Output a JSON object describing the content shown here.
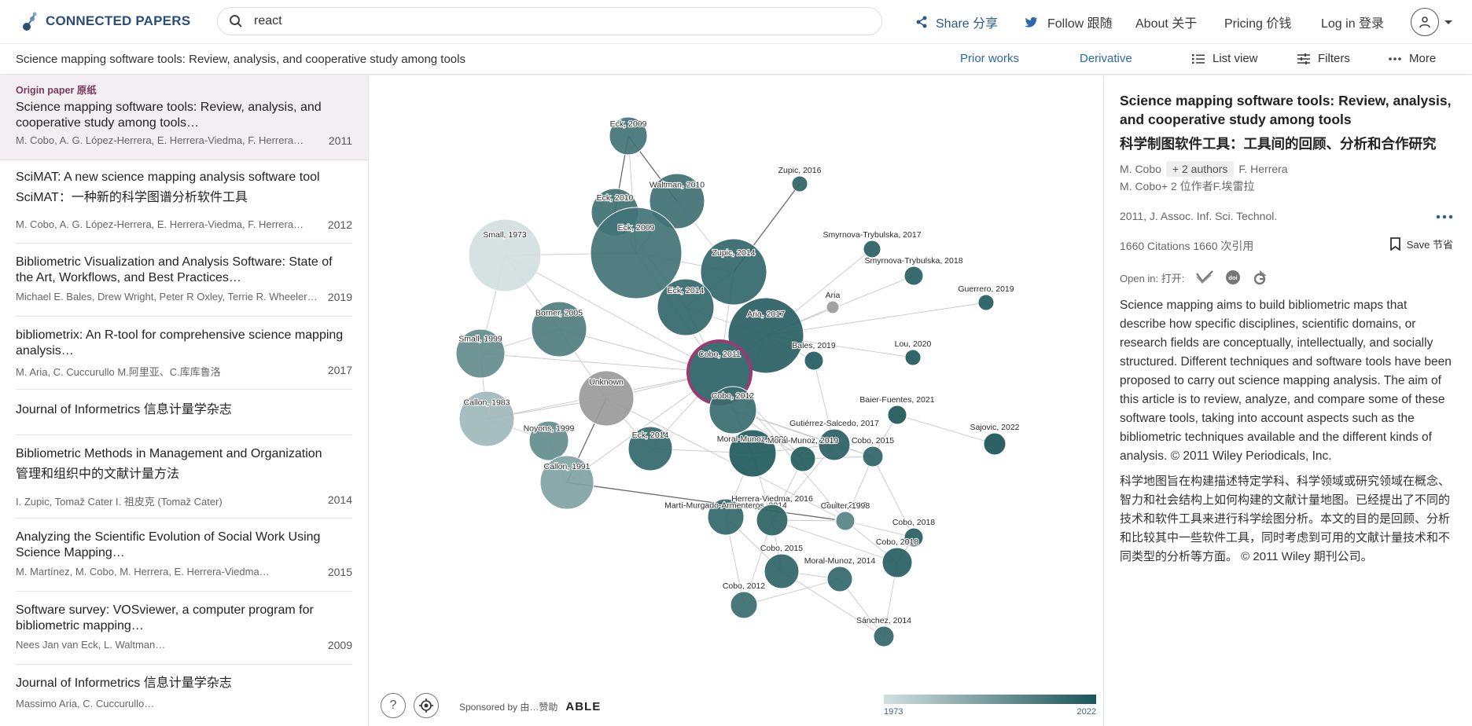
{
  "header": {
    "logo_text": "CONNECTED PAPERS",
    "search_value": "react",
    "share": "Share 分享",
    "follow": "Follow 跟随",
    "about": "About 关于",
    "pricing": "Pricing 价钱",
    "login": "Log in 登录"
  },
  "subbar": {
    "title": "Science mapping software tools: Review, analysis, and cooperative study among tools",
    "prior_works": "Prior works",
    "derivative": "Derivative",
    "list_view": "List view",
    "filters": "Filters",
    "more": "More"
  },
  "papers": [
    {
      "label": "Origin paper 原纸",
      "title": "Science mapping software tools: Review, analysis, and cooperative study among tools…",
      "authors": "M. Cobo, A. G. López-Herrera, E. Herrera-Viedma, F. Herrera…",
      "year": "2011"
    },
    {
      "title": "SciMAT: A new science mapping analysis software tool",
      "title_zh": "SciMAT：一种新的科学图谱分析软件工具",
      "authors": "M. Cobo, A. G. López-Herrera, E. Herrera-Viedma, F. Herrera…",
      "year": "2012"
    },
    {
      "title": "Bibliometric Visualization and Analysis Software: State of the Art, Workflows, and Best Practices…",
      "authors": "Michael E. Bales, Drew Wright, Peter R Oxley, Terrie R. Wheeler…",
      "year": "2019"
    },
    {
      "title": "bibliometrix: An R-tool for comprehensive science mapping analysis…",
      "authors": "M. Aria, C. Cuccurullo M.阿里亚、C.库库鲁洛",
      "year": "2017"
    },
    {
      "title": "Journal of Informetrics 信息计量学杂志"
    },
    {
      "title": "Bibliometric Methods in Management and Organization",
      "title_zh": "管理和组织中的文献计量方法",
      "authors": "I. Zupic, Tomaž Cater I. 祖皮克 (Tomaž Cater)",
      "year": "2014"
    },
    {
      "title": "Analyzing the Scientific Evolution of Social Work Using Science Mapping…",
      "authors": "M. Martínez, M. Cobo, M. Herrera, E. Herrera-Viedma…",
      "year": "2015"
    },
    {
      "title": "Software survey: VOSviewer, a computer program for bibliometric mapping…",
      "authors": "Nees Jan van Eck, L. Waltman…",
      "year": "2009"
    },
    {
      "title": "Journal of Informetrics 信息计量学杂志",
      "authors": "Massimo Aria, C. Cuccurullo…"
    }
  ],
  "graph": {
    "sponsored": "Sponsored by  由…赞助",
    "sponsor_name": "ABLE",
    "legend_min": "1973",
    "legend_max": "2022",
    "nodes": [
      {
        "label": "Eck, 2009",
        "year": 2009
      },
      {
        "label": "Zupic, 2016",
        "year": 2016
      },
      {
        "label": "Eck, 2010",
        "year": 2010
      },
      {
        "label": "Waltman, 2010",
        "year": 2010
      },
      {
        "label": "Small, 1973",
        "year": 1973
      },
      {
        "label": "Eck, 2009",
        "year": 2009
      },
      {
        "label": "Zupic, 2014",
        "year": 2014
      },
      {
        "label": "Smyrnova-Trybulska, 2017",
        "year": 2017
      },
      {
        "label": "Smyrnova-Trybulska, 2018",
        "year": 2018
      },
      {
        "label": "Guerrero, 2019",
        "year": 2019
      },
      {
        "label": "Eck, 2014",
        "year": 2014
      },
      {
        "label": "Aria",
        "year": null
      },
      {
        "label": "Borner, 2005",
        "year": 2005
      },
      {
        "label": "Aria, 2017",
        "year": 2017
      },
      {
        "label": "Small, 1999",
        "year": 1999
      },
      {
        "label": "Bales, 2019",
        "year": 2019
      },
      {
        "label": "Lou, 2020",
        "year": 2020
      },
      {
        "label": "Cobo, 2011",
        "year": 2011
      },
      {
        "label": "Unknown",
        "year": null
      },
      {
        "label": "Cobo, 2012",
        "year": 2012
      },
      {
        "label": "Baier-Fuentes, 2021",
        "year": 2021
      },
      {
        "label": "Callon, 1983",
        "year": 1983
      },
      {
        "label": "Noyons, 1999",
        "year": 1999
      },
      {
        "label": "Eck, 2014",
        "year": 2014
      },
      {
        "label": "Gutiérrez-Salcedo, 2017",
        "year": 2017
      },
      {
        "label": "Moral-Munoz, 2020",
        "year": 2020
      },
      {
        "label": "Moral-Munoz, 2019",
        "year": 2019
      },
      {
        "label": "Cobo, 2015",
        "year": 2015
      },
      {
        "label": "Sajovic, 2022",
        "year": 2022
      },
      {
        "label": "Callon, 1991",
        "year": 1991
      },
      {
        "label": "Martí-Murgado-Armenteros, 2014",
        "year": 2014
      },
      {
        "label": "Herrera-Viedma, 2016",
        "year": 2016
      },
      {
        "label": "Cobo, 2017",
        "year": 2017
      },
      {
        "label": "Coulter, 1998",
        "year": 1998
      },
      {
        "label": "Cobo, 2018",
        "year": 2018
      },
      {
        "label": "Cobo, 2018",
        "year": 2018
      },
      {
        "label": "Cobo, 2015",
        "year": 2015
      },
      {
        "label": "Moral-Munoz, 2014",
        "year": 2014
      },
      {
        "label": "Cobo, 2012",
        "year": 2012
      },
      {
        "label": "Sánchez, 2014",
        "year": 2014
      }
    ]
  },
  "detail": {
    "title": "Science mapping software tools: Review, analysis, and cooperative study among tools",
    "title_zh": "科学制图软件工具：工具间的回顾、分析和合作研究",
    "author1": "M. Cobo",
    "more_authors": "+ 2 authors",
    "author2": "F. Herrera",
    "authors_zh": "M. Cobo+ 2 位作者F.埃雷拉",
    "venue": "2011, J. Assoc. Inf. Sci. Technol.",
    "citations": "1660 Citations 1660 次引用",
    "save": "Save 节省",
    "open_in": "Open in:  打开:",
    "abstract": "Science mapping aims to build bibliometric maps that describe how specific disciplines, scientific domains, or research fields are conceptually, intellectually, and socially structured. Different techniques and software tools have been proposed to carry out science mapping analysis. The aim of this article is to review, analyze, and compare some of these software tools, taking into account aspects such as the bibliometric techniques available and the different kinds of analysis. © 2011 Wiley Periodicals, Inc.",
    "abstract_zh": "科学地图旨在构建描述特定学科、科学领域或研究领域在概念、智力和社会结构上如何构建的文献计量地图。已经提出了不同的技术和软件工具来进行科学绘图分析。本文的目的是回顾、分析和比较其中一些软件工具，同时考虑到可用的文献计量技术和不同类型的分析等方面。 © 2011 Wiley 期刊公司。"
  }
}
